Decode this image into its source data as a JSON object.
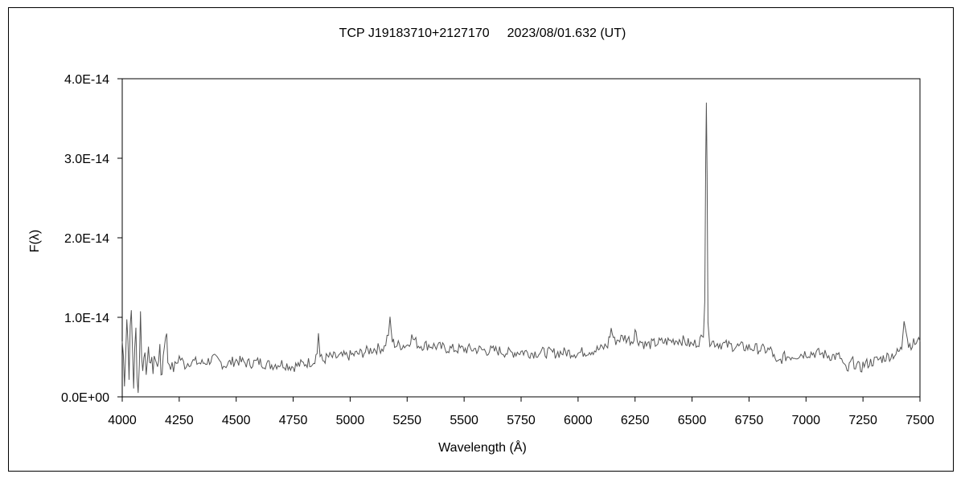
{
  "chart_data": {
    "type": "line",
    "title": "TCP J19183710+2127170",
    "subtitle": "2023/08/01.632 (UT)",
    "xlabel": "Wavelength (Å)",
    "ylabel": "F(λ)",
    "xlim": [
      4000,
      7500
    ],
    "ylim": [
      0,
      4e-14
    ],
    "x_ticks": [
      4000,
      4250,
      4500,
      4750,
      5000,
      5250,
      5500,
      5750,
      6000,
      6250,
      6500,
      6750,
      7000,
      7250,
      7500
    ],
    "x_tick_labels": [
      "4000",
      "4250",
      "4500",
      "4750",
      "5000",
      "5250",
      "5500",
      "5750",
      "6000",
      "6250",
      "6500",
      "6750",
      "7000",
      "7250",
      "7500"
    ],
    "y_ticks": [
      0,
      1e-14,
      2e-14,
      3e-14,
      4e-14
    ],
    "y_tick_labels": [
      "0.0E+00",
      "1.0E-14",
      "2.0E-14",
      "3.0E-14",
      "4.0E-14"
    ],
    "grid": false,
    "line_color": "#555555",
    "series": [
      {
        "x": [
          4000,
          4010,
          4020,
          4030,
          4040,
          4050,
          4060,
          4070,
          4080,
          4090,
          4100,
          4110,
          4120,
          4130,
          4140,
          4150,
          4160,
          4170,
          4180,
          4190,
          4200,
          4225,
          4250,
          4275,
          4300,
          4350,
          4400,
          4450,
          4500,
          4550,
          4600,
          4650,
          4700,
          4750,
          4800,
          4840,
          4855,
          4861,
          4868,
          4880,
          4900,
          4950,
          5000,
          5050,
          5100,
          5150,
          5168,
          5175,
          5185,
          5200,
          5250,
          5270,
          5300,
          5350,
          5400,
          5450,
          5500,
          5550,
          5600,
          5650,
          5700,
          5750,
          5800,
          5850,
          5900,
          5950,
          6000,
          6050,
          6100,
          6130,
          6145,
          6160,
          6200,
          6240,
          6250,
          6260,
          6300,
          6350,
          6400,
          6450,
          6500,
          6530,
          6550,
          6556,
          6560,
          6563,
          6566,
          6570,
          6578,
          6600,
          6650,
          6700,
          6750,
          6800,
          6850,
          6870,
          6900,
          6950,
          7000,
          7050,
          7100,
          7150,
          7180,
          7200,
          7240,
          7250,
          7300,
          7350,
          7400,
          7420,
          7430,
          7450,
          7500
        ],
        "y": [
          7e-15,
          3e-15,
          1e-14,
          4e-15,
          1.05e-14,
          2e-15,
          8e-15,
          5e-16,
          1e-14,
          3e-15,
          7e-15,
          2.5e-15,
          6e-15,
          3e-15,
          5.5e-15,
          3.5e-15,
          6e-15,
          3e-15,
          5e-15,
          9e-15,
          4.5e-15,
          3.5e-15,
          5e-15,
          4e-15,
          4.5e-15,
          4.2e-15,
          4.8e-15,
          4e-15,
          4.6e-15,
          4.2e-15,
          4.4e-15,
          4e-15,
          4.2e-15,
          3.8e-15,
          4.2e-15,
          4.5e-15,
          5.5e-15,
          8e-15,
          5e-15,
          4.5e-15,
          5e-15,
          5e-15,
          5.2e-15,
          5.5e-15,
          6e-15,
          6.2e-15,
          8e-15,
          9.5e-15,
          7e-15,
          6.5e-15,
          6.5e-15,
          7.5e-15,
          6.5e-15,
          6.5e-15,
          6.2e-15,
          6e-15,
          6e-15,
          6e-15,
          5.8e-15,
          5.8e-15,
          5.5e-15,
          5.7e-15,
          5.5e-15,
          5.6e-15,
          5.5e-15,
          5.6e-15,
          5.5e-15,
          5.8e-15,
          6e-15,
          6.5e-15,
          8.5e-15,
          7e-15,
          7.5e-15,
          7e-15,
          8.5e-15,
          7.2e-15,
          6.5e-15,
          6.8e-15,
          7e-15,
          7.2e-15,
          6.5e-15,
          7e-15,
          7.5e-15,
          1.2e-14,
          3e-14,
          3.7e-14,
          2.8e-14,
          1e-14,
          7e-15,
          6.8e-15,
          6.5e-15,
          6.3e-15,
          6.2e-15,
          6e-15,
          5.8e-15,
          4e-15,
          5e-15,
          5.2e-15,
          5.5e-15,
          5.5e-15,
          5.2e-15,
          5e-15,
          3e-15,
          4.5e-15,
          3.5e-15,
          4e-15,
          4.5e-15,
          5e-15,
          5.5e-15,
          6e-15,
          9.5e-15,
          6.5e-15,
          7e-15
        ]
      }
    ]
  }
}
